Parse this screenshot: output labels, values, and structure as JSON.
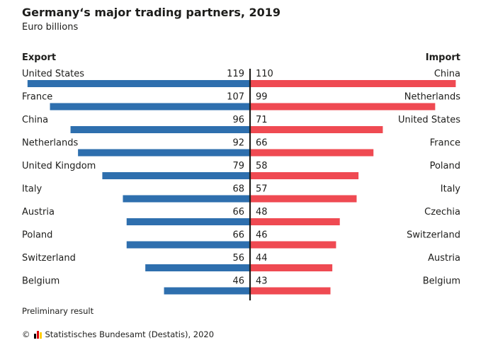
{
  "title": "Germany‘s major trading partners, 2019",
  "subtitle": "Euro billions",
  "export_label": "Export",
  "import_label": "Import",
  "note": "Preliminary result",
  "source": {
    "copyright": "©",
    "text": "Statistisches Bundesamt (Destatis), 2020",
    "logo_colors": [
      "#000000",
      "#dd0000",
      "#ffce00"
    ]
  },
  "colors": {
    "export": "#2e6fae",
    "import": "#ef4a52",
    "axis": "#1d1d1b"
  },
  "chart_data": {
    "type": "bar",
    "title": "Germany‘s major trading partners, 2019",
    "unit": "Euro billions",
    "orientation": "horizontal-butterfly",
    "series": [
      {
        "name": "Export",
        "categories": [
          "United States",
          "France",
          "China",
          "Netherlands",
          "United Kingdom",
          "Italy",
          "Austria",
          "Poland",
          "Switzerland",
          "Belgium"
        ],
        "values": [
          119,
          107,
          96,
          92,
          79,
          68,
          66,
          66,
          56,
          46
        ]
      },
      {
        "name": "Import",
        "categories": [
          "China",
          "Netherlands",
          "United States",
          "France",
          "Poland",
          "Italy",
          "Czechia",
          "Switzerland",
          "Austria",
          "Belgium"
        ],
        "values": [
          110,
          99,
          71,
          66,
          58,
          57,
          48,
          46,
          44,
          43
        ]
      }
    ],
    "xlim": [
      0,
      120
    ]
  }
}
